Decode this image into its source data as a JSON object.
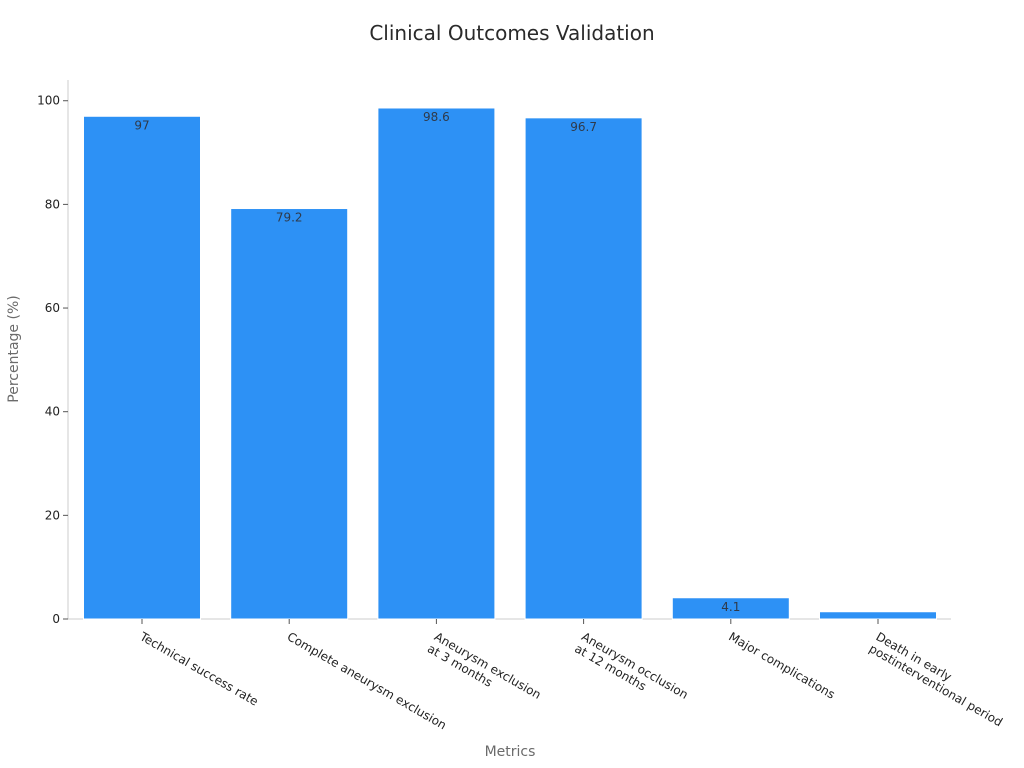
{
  "chart_data": {
    "type": "bar",
    "title": "Clinical Outcomes Validation",
    "xlabel": "Metrics",
    "ylabel": "Percentage (%)",
    "ylim": [
      0,
      104
    ],
    "yticks": [
      0,
      20,
      40,
      60,
      80,
      100
    ],
    "grid": false,
    "categories": [
      [
        "Technical success rate"
      ],
      [
        "Complete aneurysm exclusion"
      ],
      [
        "Aneurysm exclusion",
        "at 3 months"
      ],
      [
        "Aneurysm occlusion",
        "at 12 months"
      ],
      [
        "Major complications"
      ],
      [
        "Death in early",
        "postinterventional period"
      ]
    ],
    "values": [
      97,
      79.2,
      98.6,
      96.7,
      4.1,
      1.4
    ],
    "data_labels": [
      "97",
      "79.2",
      "98.6",
      "96.7",
      "4.1",
      ""
    ],
    "colors": {
      "bar": "#2d91f5",
      "bar_edge": "#ffffff"
    }
  }
}
